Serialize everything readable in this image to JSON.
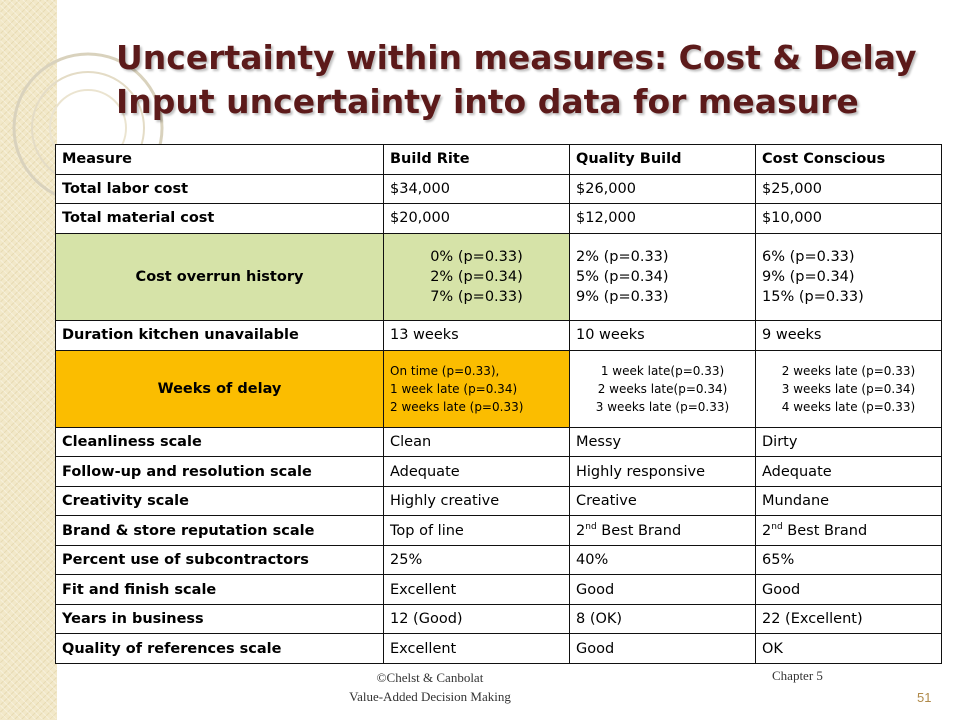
{
  "slide": {
    "title_line1": "Uncertainty within measures: Cost & Delay",
    "title_line2": "Input uncertainty into data for measure"
  },
  "table": {
    "headers": [
      "Measure",
      "Build Rite",
      "Quality Build",
      "Cost Conscious"
    ],
    "rows": [
      {
        "measure": "Total labor cost",
        "values": [
          "$34,000",
          "$26,000",
          "$25,000"
        ]
      },
      {
        "measure": "Total material cost",
        "values": [
          "$20,000",
          "$12,000",
          "$10,000"
        ]
      },
      {
        "measure": "Cost overrun history",
        "lines": [
          [
            "0% (p=0.33)",
            "2% (p=0.34)",
            "7% (p=0.33)"
          ],
          [
            "2% (p=0.33)",
            "5% (p=0.34)",
            "9% (p=0.33)"
          ],
          [
            "6% (p=0.33)",
            "9% (p=0.34)",
            "15% (p=0.33)"
          ]
        ]
      },
      {
        "measure": "Duration kitchen unavailable",
        "values": [
          "13 weeks",
          "10 weeks",
          "9 weeks"
        ]
      },
      {
        "measure": "Weeks of delay",
        "lines": [
          [
            "On time (p=0.33),",
            "1 week late (p=0.34)",
            "2 weeks late (p=0.33)"
          ],
          [
            "1 week late(p=0.33)",
            "2 weeks late(p=0.34)",
            "3 weeks late (p=0.33)"
          ],
          [
            "2 weeks late (p=0.33)",
            "3 weeks late (p=0.34)",
            "4 weeks late (p=0.33)"
          ]
        ]
      },
      {
        "measure": "Cleanliness scale",
        "values": [
          "Clean",
          "Messy",
          "Dirty"
        ]
      },
      {
        "measure": "Follow-up and resolution scale",
        "values": [
          "Adequate",
          "Highly responsive",
          "Adequate"
        ]
      },
      {
        "measure": "Creativity scale",
        "values": [
          "Highly creative",
          "Creative",
          "Mundane"
        ]
      },
      {
        "measure": "Brand & store reputation scale",
        "values": [
          "Top of line",
          "2",
          "2"
        ],
        "suffix": [
          "",
          "nd",
          "nd"
        ],
        "after": [
          "",
          " Best Brand",
          " Best Brand"
        ]
      },
      {
        "measure": "Percent use of subcontractors",
        "values": [
          "25%",
          "40%",
          "65%"
        ]
      },
      {
        "measure": "Fit and finish scale",
        "values": [
          "Excellent",
          "Good",
          "Good"
        ]
      },
      {
        "measure": "Years in business",
        "values": [
          "12 (Good)",
          "8 (OK)",
          "22 (Excellent)"
        ]
      },
      {
        "measure": "Quality of references scale",
        "values": [
          "Excellent",
          "Good",
          "OK"
        ]
      }
    ]
  },
  "footer": {
    "copyright": "©Chelst & Canbolat",
    "book": "Value-Added Decision Making",
    "chapter": "Chapter 5",
    "page": "51"
  },
  "colors": {
    "title": "#5c1a1a",
    "cost_overrun_bg": "#d6e3a8",
    "weeks_delay_bg": "#fbbd00",
    "page_number": "#b08a4a"
  }
}
